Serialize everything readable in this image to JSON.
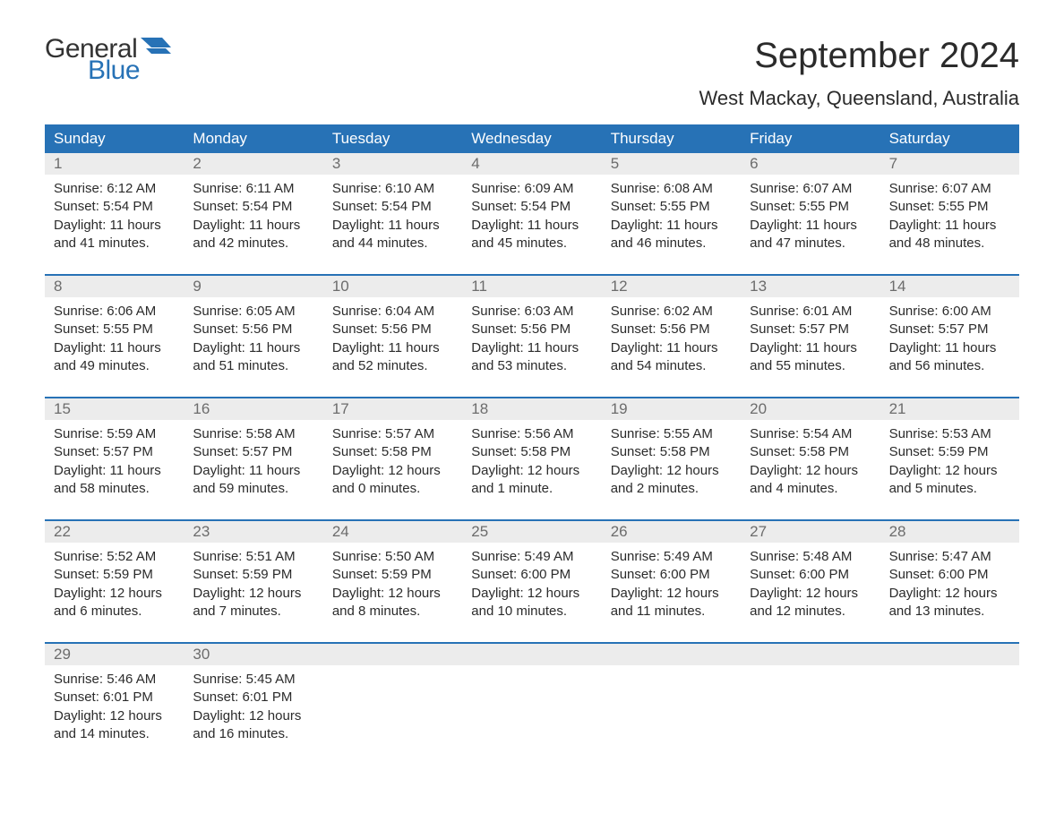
{
  "logo": {
    "word1": "General",
    "word2": "Blue",
    "word1_color": "#333333",
    "word2_color": "#2772b6",
    "flag_color": "#2772b6"
  },
  "title": "September 2024",
  "location": "West Mackay, Queensland, Australia",
  "colors": {
    "header_bg": "#2772b6",
    "header_text": "#ffffff",
    "daynum_bg": "#ececec",
    "daynum_text": "#6c6c6c",
    "body_text": "#2b2b2b",
    "separator": "#2772b6",
    "page_bg": "#ffffff"
  },
  "day_headers": [
    "Sunday",
    "Monday",
    "Tuesday",
    "Wednesday",
    "Thursday",
    "Friday",
    "Saturday"
  ],
  "weeks": [
    [
      {
        "n": "1",
        "sunrise": "6:12 AM",
        "sunset": "5:54 PM",
        "dh": "11",
        "dm": "41"
      },
      {
        "n": "2",
        "sunrise": "6:11 AM",
        "sunset": "5:54 PM",
        "dh": "11",
        "dm": "42"
      },
      {
        "n": "3",
        "sunrise": "6:10 AM",
        "sunset": "5:54 PM",
        "dh": "11",
        "dm": "44"
      },
      {
        "n": "4",
        "sunrise": "6:09 AM",
        "sunset": "5:54 PM",
        "dh": "11",
        "dm": "45"
      },
      {
        "n": "5",
        "sunrise": "6:08 AM",
        "sunset": "5:55 PM",
        "dh": "11",
        "dm": "46"
      },
      {
        "n": "6",
        "sunrise": "6:07 AM",
        "sunset": "5:55 PM",
        "dh": "11",
        "dm": "47"
      },
      {
        "n": "7",
        "sunrise": "6:07 AM",
        "sunset": "5:55 PM",
        "dh": "11",
        "dm": "48"
      }
    ],
    [
      {
        "n": "8",
        "sunrise": "6:06 AM",
        "sunset": "5:55 PM",
        "dh": "11",
        "dm": "49"
      },
      {
        "n": "9",
        "sunrise": "6:05 AM",
        "sunset": "5:56 PM",
        "dh": "11",
        "dm": "51"
      },
      {
        "n": "10",
        "sunrise": "6:04 AM",
        "sunset": "5:56 PM",
        "dh": "11",
        "dm": "52"
      },
      {
        "n": "11",
        "sunrise": "6:03 AM",
        "sunset": "5:56 PM",
        "dh": "11",
        "dm": "53"
      },
      {
        "n": "12",
        "sunrise": "6:02 AM",
        "sunset": "5:56 PM",
        "dh": "11",
        "dm": "54"
      },
      {
        "n": "13",
        "sunrise": "6:01 AM",
        "sunset": "5:57 PM",
        "dh": "11",
        "dm": "55"
      },
      {
        "n": "14",
        "sunrise": "6:00 AM",
        "sunset": "5:57 PM",
        "dh": "11",
        "dm": "56"
      }
    ],
    [
      {
        "n": "15",
        "sunrise": "5:59 AM",
        "sunset": "5:57 PM",
        "dh": "11",
        "dm": "58"
      },
      {
        "n": "16",
        "sunrise": "5:58 AM",
        "sunset": "5:57 PM",
        "dh": "11",
        "dm": "59"
      },
      {
        "n": "17",
        "sunrise": "5:57 AM",
        "sunset": "5:58 PM",
        "dh": "12",
        "dm": "0"
      },
      {
        "n": "18",
        "sunrise": "5:56 AM",
        "sunset": "5:58 PM",
        "dh": "12",
        "dm": "1"
      },
      {
        "n": "19",
        "sunrise": "5:55 AM",
        "sunset": "5:58 PM",
        "dh": "12",
        "dm": "2"
      },
      {
        "n": "20",
        "sunrise": "5:54 AM",
        "sunset": "5:58 PM",
        "dh": "12",
        "dm": "4"
      },
      {
        "n": "21",
        "sunrise": "5:53 AM",
        "sunset": "5:59 PM",
        "dh": "12",
        "dm": "5"
      }
    ],
    [
      {
        "n": "22",
        "sunrise": "5:52 AM",
        "sunset": "5:59 PM",
        "dh": "12",
        "dm": "6"
      },
      {
        "n": "23",
        "sunrise": "5:51 AM",
        "sunset": "5:59 PM",
        "dh": "12",
        "dm": "7"
      },
      {
        "n": "24",
        "sunrise": "5:50 AM",
        "sunset": "5:59 PM",
        "dh": "12",
        "dm": "8"
      },
      {
        "n": "25",
        "sunrise": "5:49 AM",
        "sunset": "6:00 PM",
        "dh": "12",
        "dm": "10"
      },
      {
        "n": "26",
        "sunrise": "5:49 AM",
        "sunset": "6:00 PM",
        "dh": "12",
        "dm": "11"
      },
      {
        "n": "27",
        "sunrise": "5:48 AM",
        "sunset": "6:00 PM",
        "dh": "12",
        "dm": "12"
      },
      {
        "n": "28",
        "sunrise": "5:47 AM",
        "sunset": "6:00 PM",
        "dh": "12",
        "dm": "13"
      }
    ],
    [
      {
        "n": "29",
        "sunrise": "5:46 AM",
        "sunset": "6:01 PM",
        "dh": "12",
        "dm": "14"
      },
      {
        "n": "30",
        "sunrise": "5:45 AM",
        "sunset": "6:01 PM",
        "dh": "12",
        "dm": "16"
      },
      null,
      null,
      null,
      null,
      null
    ]
  ],
  "labels": {
    "sunrise_prefix": "Sunrise: ",
    "sunset_prefix": "Sunset: ",
    "daylight_prefix": "Daylight: ",
    "hours_word": " hours",
    "and_word": "and ",
    "minutes_word": " minutes.",
    "minute_word": " minute."
  }
}
